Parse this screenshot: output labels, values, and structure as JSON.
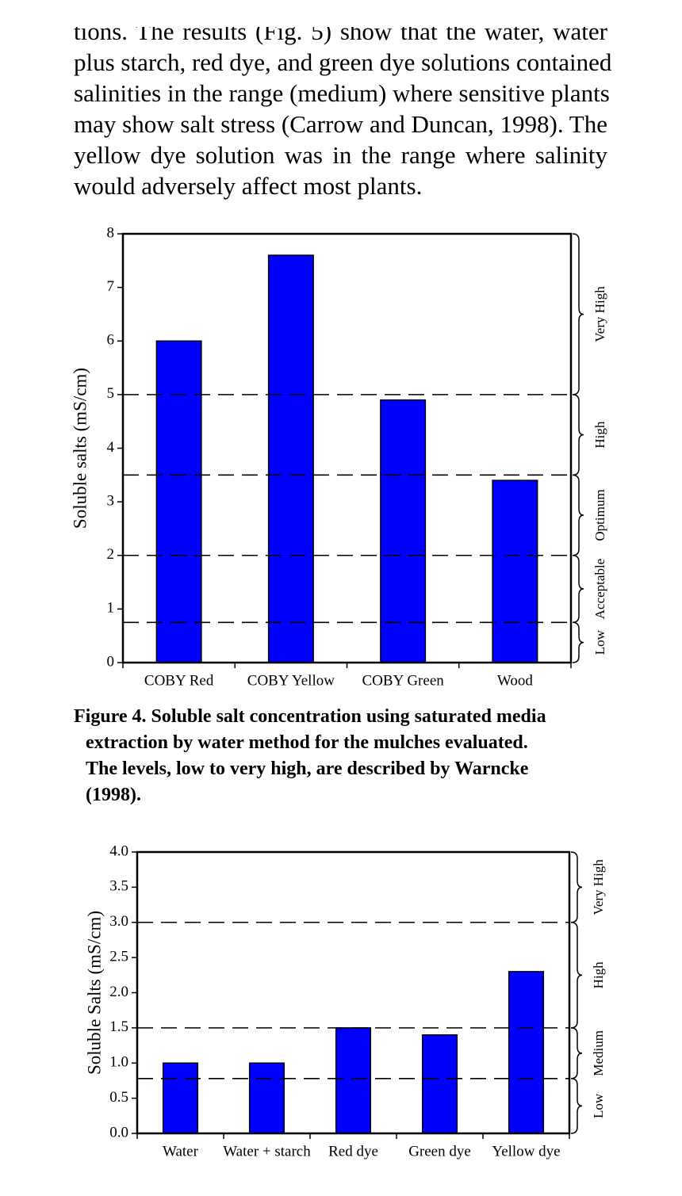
{
  "paragraph": {
    "lines": [
      "tions. The results (Fig. 5) show that the water, water",
      "plus starch, red dye, and green dye solutions contained",
      "salinities in the range (medium) where sensitive plants",
      "may show salt stress (Carrow and Duncan, 1998). The",
      "yellow dye solution was in the range where salinity",
      "would adversely affect most plants."
    ]
  },
  "chart_data": [
    {
      "type": "bar",
      "y_label": "Soluble salts (mS/cm)",
      "categories": [
        "COBY Red",
        "COBY Yellow",
        "COBY Green",
        "Wood"
      ],
      "values": [
        6.0,
        7.6,
        4.9,
        3.4
      ],
      "color": "#0000ff",
      "ylim": [
        0,
        8
      ],
      "yticks": [
        0,
        1,
        2,
        3,
        4,
        5,
        6,
        7,
        8
      ],
      "thresholds": [
        0.75,
        2,
        3.5,
        5
      ],
      "levels": [
        "Low",
        "Acceptable",
        "Optimum",
        "High",
        "Very High"
      ]
    },
    {
      "type": "bar",
      "y_label": "Soluble Salts (mS/cm)",
      "categories": [
        "Water",
        "Water + starch",
        "Red dye",
        "Green dye",
        "Yellow dye"
      ],
      "values": [
        1.0,
        1.0,
        1.5,
        1.4,
        2.3
      ],
      "color": "#0000ff",
      "ylim": [
        0,
        4
      ],
      "yticks": [
        {
          "value": 0,
          "label": "0.0"
        },
        0.5,
        {
          "value": 1,
          "label": "1.0"
        },
        1.5,
        {
          "value": 2,
          "label": "2.0"
        },
        2.5,
        {
          "value": 3,
          "label": "3.0"
        },
        3.5,
        {
          "value": 4,
          "label": "4.0"
        }
      ],
      "thresholds": [
        0.78,
        1.5,
        3.0
      ],
      "levels": [
        "Low",
        "Medium",
        "High",
        "Very High"
      ]
    }
  ],
  "caption": {
    "lines": [
      "Figure 4. Soluble salt concentration using saturated media",
      "extraction by water method for the mulches evaluated.",
      "The levels, low to very high, are described by Warncke",
      "(1998)."
    ]
  }
}
